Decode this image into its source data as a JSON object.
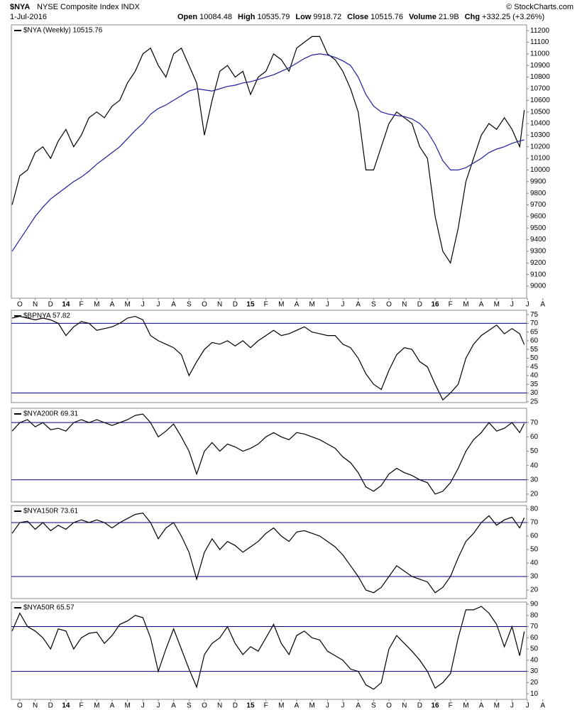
{
  "header": {
    "symbol": "$NYA",
    "name": "NYSE Composite Index INDX",
    "date": "1-Jul-2016",
    "quote": [
      {
        "label": "Open",
        "value": "10084.48"
      },
      {
        "label": "High",
        "value": "10535.79"
      },
      {
        "label": "Low",
        "value": "9918.72"
      },
      {
        "label": "Close",
        "value": "10515.76"
      },
      {
        "label": "Volume",
        "value": "21.9B"
      },
      {
        "label": "Chg",
        "value": "+332.25 (+3.26%)"
      }
    ],
    "credit": "© StockCharts.com"
  },
  "chart_data": [
    {
      "type": "line",
      "xlim": [
        -0.55,
        32.95
      ],
      "ylim": [
        8896,
        11250
      ],
      "x": [
        -0.5,
        0,
        0.5,
        1,
        1.5,
        2,
        2.5,
        3,
        3.5,
        4,
        4.5,
        5,
        5.5,
        6,
        6.5,
        7,
        7.5,
        8,
        8.5,
        9,
        9.5,
        10,
        10.5,
        11,
        11.5,
        12,
        12.5,
        13,
        13.5,
        14,
        14.5,
        15,
        15.5,
        16,
        16.5,
        17,
        17.5,
        18,
        18.5,
        19,
        19.5,
        20,
        20.5,
        21,
        21.5,
        22,
        22.5,
        23,
        23.5,
        24,
        24.5,
        25,
        25.5,
        26,
        26.5,
        27,
        27.5,
        28,
        28.5,
        29,
        29.5,
        30,
        30.5,
        31,
        31.5,
        32,
        32.5,
        32.8
      ],
      "xticks": [
        {
          "value": 0,
          "label": "O"
        },
        {
          "value": 1,
          "label": "N"
        },
        {
          "value": 2,
          "label": "D"
        },
        {
          "value": 3,
          "label": "14"
        },
        {
          "value": 4,
          "label": "F"
        },
        {
          "value": 5,
          "label": "M"
        },
        {
          "value": 6,
          "label": "A"
        },
        {
          "value": 7,
          "label": "M"
        },
        {
          "value": 8,
          "label": "J"
        },
        {
          "value": 9,
          "label": "J"
        },
        {
          "value": 10,
          "label": "A"
        },
        {
          "value": 11,
          "label": "S"
        },
        {
          "value": 12,
          "label": "O"
        },
        {
          "value": 13,
          "label": "N"
        },
        {
          "value": 14,
          "label": "D"
        },
        {
          "value": 15,
          "label": "15"
        },
        {
          "value": 16,
          "label": "F"
        },
        {
          "value": 17,
          "label": "M"
        },
        {
          "value": 18,
          "label": "A"
        },
        {
          "value": 19,
          "label": "M"
        },
        {
          "value": 20,
          "label": "J"
        },
        {
          "value": 21,
          "label": "J"
        },
        {
          "value": 22,
          "label": "A"
        },
        {
          "value": 23,
          "label": "S"
        },
        {
          "value": 24,
          "label": "O"
        },
        {
          "value": 25,
          "label": "N"
        },
        {
          "value": 26,
          "label": "D"
        },
        {
          "value": 27,
          "label": "16"
        },
        {
          "value": 28,
          "label": "F"
        },
        {
          "value": 29,
          "label": "M"
        },
        {
          "value": 30,
          "label": "A"
        },
        {
          "value": 31,
          "label": "M"
        },
        {
          "value": 32,
          "label": "J"
        },
        {
          "value": 33,
          "label": "J"
        },
        {
          "value": 34,
          "label": "A"
        }
      ],
      "yticks": [
        9000,
        9100,
        9200,
        9300,
        9400,
        9500,
        9600,
        9700,
        9800,
        9900,
        10000,
        10100,
        10200,
        10300,
        10400,
        10500,
        10600,
        10700,
        10800,
        10900,
        11000,
        11100,
        11200
      ],
      "series": [
        {
          "name": "$NYA (Weekly) 10515.76",
          "color": "#000000",
          "values": [
            9700,
            9950,
            10000,
            10150,
            10200,
            10100,
            10250,
            10350,
            10200,
            10300,
            10450,
            10500,
            10450,
            10550,
            10600,
            10750,
            10850,
            11000,
            11050,
            10900,
            10800,
            11000,
            11050,
            10900,
            10750,
            10300,
            10600,
            10850,
            10900,
            10800,
            10850,
            10650,
            10800,
            10850,
            11000,
            10950,
            10850,
            11050,
            11100,
            11150,
            11150,
            11000,
            10950,
            10850,
            10700,
            10500,
            10000,
            10000,
            10200,
            10400,
            10500,
            10450,
            10400,
            10200,
            10100,
            9600,
            9300,
            9200,
            9500,
            9900,
            10100,
            10300,
            10400,
            10350,
            10450,
            10350,
            10200,
            10516
          ]
        },
        {
          "color": "#1f1f99",
          "values": [
            9300,
            9400,
            9500,
            9600,
            9680,
            9750,
            9800,
            9850,
            9900,
            9940,
            9990,
            10050,
            10100,
            10150,
            10200,
            10270,
            10340,
            10400,
            10480,
            10530,
            10560,
            10600,
            10640,
            10680,
            10700,
            10690,
            10680,
            10700,
            10720,
            10730,
            10750,
            10760,
            10780,
            10800,
            10820,
            10850,
            10880,
            10920,
            10960,
            10990,
            11000,
            10990,
            10970,
            10940,
            10900,
            10800,
            10650,
            10550,
            10500,
            10480,
            10470,
            10460,
            10440,
            10400,
            10330,
            10220,
            10080,
            10000,
            10000,
            10020,
            10060,
            10100,
            10150,
            10180,
            10200,
            10230,
            10250,
            10260
          ]
        }
      ]
    },
    {
      "type": "line",
      "xlim": [
        -0.55,
        32.95
      ],
      "ylim": [
        24.5,
        77.5
      ],
      "x": [
        -0.5,
        0,
        0.5,
        1,
        1.5,
        2,
        2.5,
        3,
        3.5,
        4,
        4.5,
        5,
        5.5,
        6,
        6.5,
        7,
        7.5,
        8,
        8.5,
        9,
        9.5,
        10,
        10.5,
        11,
        11.5,
        12,
        12.5,
        13,
        13.5,
        14,
        14.5,
        15,
        15.5,
        16,
        16.5,
        17,
        17.5,
        18,
        18.5,
        19,
        19.5,
        20,
        20.5,
        21,
        21.5,
        22,
        22.5,
        23,
        23.5,
        24,
        24.5,
        25,
        25.5,
        26,
        26.5,
        27,
        27.5,
        28,
        28.5,
        29,
        29.5,
        30,
        30.5,
        31,
        31.5,
        32,
        32.5,
        32.8
      ],
      "yticks": [
        25,
        30,
        35,
        40,
        45,
        50,
        55,
        60,
        65,
        70,
        75
      ],
      "reference_lines": [
        70,
        30
      ],
      "series": [
        {
          "name": "$BPNYA 57.82",
          "color": "#000000",
          "values": [
            73,
            74,
            73,
            72,
            73,
            72,
            70,
            63,
            68,
            71,
            70,
            66,
            67,
            68,
            70,
            73,
            74,
            72,
            63,
            60,
            58,
            56,
            52,
            40,
            48,
            55,
            59,
            58,
            60,
            57,
            60,
            56,
            60,
            63,
            66,
            63,
            64,
            66,
            68,
            65,
            64,
            63,
            63,
            58,
            56,
            50,
            41,
            35,
            32,
            43,
            52,
            56,
            55,
            48,
            45,
            35,
            26,
            30,
            35,
            50,
            58,
            63,
            66,
            69,
            64,
            67,
            64,
            57.82
          ]
        }
      ]
    },
    {
      "type": "line",
      "xlim": [
        -0.55,
        32.95
      ],
      "ylim": [
        14.5,
        80
      ],
      "x": [
        -0.5,
        0,
        0.5,
        1,
        1.5,
        2,
        2.5,
        3,
        3.5,
        4,
        4.5,
        5,
        5.5,
        6,
        6.5,
        7,
        7.5,
        8,
        8.5,
        9,
        9.5,
        10,
        10.5,
        11,
        11.5,
        12,
        12.5,
        13,
        13.5,
        14,
        14.5,
        15,
        15.5,
        16,
        16.5,
        17,
        17.5,
        18,
        18.5,
        19,
        19.5,
        20,
        20.5,
        21,
        21.5,
        22,
        22.5,
        23,
        23.5,
        24,
        24.5,
        25,
        25.5,
        26,
        26.5,
        27,
        27.5,
        28,
        28.5,
        29,
        29.5,
        30,
        30.5,
        31,
        31.5,
        32,
        32.5,
        32.8
      ],
      "yticks": [
        20,
        30,
        40,
        50,
        60,
        70
      ],
      "reference_lines": [
        70,
        30
      ],
      "series": [
        {
          "name": "$NYA200R 69.31",
          "color": "#000000",
          "values": [
            64,
            70,
            72,
            67,
            70,
            65,
            66,
            64,
            70,
            72,
            70,
            72,
            70,
            68,
            70,
            72,
            75,
            76,
            70,
            60,
            64,
            69,
            60,
            50,
            34,
            50,
            56,
            50,
            55,
            53,
            50,
            52,
            55,
            60,
            63,
            60,
            58,
            63,
            62,
            60,
            58,
            55,
            52,
            46,
            42,
            35,
            25,
            22,
            26,
            34,
            38,
            35,
            33,
            30,
            28,
            20,
            22,
            28,
            38,
            50,
            58,
            63,
            70,
            64,
            66,
            70,
            63,
            69.31
          ]
        }
      ]
    },
    {
      "type": "line",
      "xlim": [
        -0.55,
        32.95
      ],
      "ylim": [
        13.7,
        82.6
      ],
      "x": [
        -0.5,
        0,
        0.5,
        1,
        1.5,
        2,
        2.5,
        3,
        3.5,
        4,
        4.5,
        5,
        5.5,
        6,
        6.5,
        7,
        7.5,
        8,
        8.5,
        9,
        9.5,
        10,
        10.5,
        11,
        11.5,
        12,
        12.5,
        13,
        13.5,
        14,
        14.5,
        15,
        15.5,
        16,
        16.5,
        17,
        17.5,
        18,
        18.5,
        19,
        19.5,
        20,
        20.5,
        21,
        21.5,
        22,
        22.5,
        23,
        23.5,
        24,
        24.5,
        25,
        25.5,
        26,
        26.5,
        27,
        27.5,
        28,
        28.5,
        29,
        29.5,
        30,
        30.5,
        31,
        31.5,
        32,
        32.5,
        32.8
      ],
      "yticks": [
        20,
        30,
        40,
        50,
        60,
        70,
        80
      ],
      "reference_lines": [
        70,
        30
      ],
      "series": [
        {
          "name": "$NYA150R 73.61",
          "color": "#000000",
          "values": [
            62,
            70,
            71,
            65,
            70,
            64,
            68,
            65,
            70,
            72,
            70,
            72,
            70,
            66,
            70,
            73,
            76,
            77,
            70,
            58,
            66,
            70,
            60,
            48,
            28,
            48,
            58,
            50,
            56,
            53,
            48,
            52,
            56,
            62,
            66,
            60,
            56,
            63,
            64,
            62,
            60,
            56,
            52,
            46,
            38,
            30,
            20,
            18,
            22,
            30,
            38,
            34,
            30,
            28,
            26,
            18,
            22,
            30,
            44,
            56,
            62,
            70,
            75,
            68,
            72,
            74,
            66,
            73.61
          ]
        }
      ]
    },
    {
      "type": "line",
      "xlim": [
        -0.55,
        32.95
      ],
      "ylim": [
        5,
        91.9
      ],
      "x": [
        -0.5,
        0,
        0.5,
        1,
        1.5,
        2,
        2.5,
        3,
        3.5,
        4,
        4.5,
        5,
        5.5,
        6,
        6.5,
        7,
        7.5,
        8,
        8.5,
        9,
        9.5,
        10,
        10.5,
        11,
        11.5,
        12,
        12.5,
        13,
        13.5,
        14,
        14.5,
        15,
        15.5,
        16,
        16.5,
        17,
        17.5,
        18,
        18.5,
        19,
        19.5,
        20,
        20.5,
        21,
        21.5,
        22,
        22.5,
        23,
        23.5,
        24,
        24.5,
        25,
        25.5,
        26,
        26.5,
        27,
        27.5,
        28,
        28.5,
        29,
        29.5,
        30,
        30.5,
        31,
        31.5,
        32,
        32.5,
        32.8
      ],
      "xticks": [
        {
          "value": 0,
          "label": "O"
        },
        {
          "value": 1,
          "label": "N"
        },
        {
          "value": 2,
          "label": "D"
        },
        {
          "value": 3,
          "label": "14"
        },
        {
          "value": 4,
          "label": "F"
        },
        {
          "value": 5,
          "label": "M"
        },
        {
          "value": 6,
          "label": "A"
        },
        {
          "value": 7,
          "label": "M"
        },
        {
          "value": 8,
          "label": "J"
        },
        {
          "value": 9,
          "label": "J"
        },
        {
          "value": 10,
          "label": "A"
        },
        {
          "value": 11,
          "label": "S"
        },
        {
          "value": 12,
          "label": "O"
        },
        {
          "value": 13,
          "label": "N"
        },
        {
          "value": 14,
          "label": "D"
        },
        {
          "value": 15,
          "label": "15"
        },
        {
          "value": 16,
          "label": "F"
        },
        {
          "value": 17,
          "label": "M"
        },
        {
          "value": 18,
          "label": "A"
        },
        {
          "value": 19,
          "label": "M"
        },
        {
          "value": 20,
          "label": "J"
        },
        {
          "value": 21,
          "label": "J"
        },
        {
          "value": 22,
          "label": "A"
        },
        {
          "value": 23,
          "label": "S"
        },
        {
          "value": 24,
          "label": "O"
        },
        {
          "value": 25,
          "label": "N"
        },
        {
          "value": 26,
          "label": "D"
        },
        {
          "value": 27,
          "label": "16"
        },
        {
          "value": 28,
          "label": "F"
        },
        {
          "value": 29,
          "label": "M"
        },
        {
          "value": 30,
          "label": "A"
        },
        {
          "value": 31,
          "label": "M"
        },
        {
          "value": 32,
          "label": "J"
        },
        {
          "value": 33,
          "label": "J"
        },
        {
          "value": 34,
          "label": "A"
        }
      ],
      "yticks": [
        10,
        20,
        30,
        40,
        50,
        60,
        70,
        80,
        90
      ],
      "reference_lines": [
        70,
        30
      ],
      "series": [
        {
          "name": "$NYA50R 65.57",
          "color": "#000000",
          "values": [
            66,
            82,
            70,
            66,
            60,
            50,
            68,
            66,
            50,
            60,
            64,
            65,
            55,
            62,
            72,
            75,
            80,
            78,
            60,
            30,
            50,
            68,
            50,
            32,
            16,
            45,
            55,
            60,
            70,
            55,
            45,
            52,
            48,
            60,
            72,
            55,
            45,
            62,
            66,
            60,
            58,
            48,
            44,
            40,
            32,
            30,
            18,
            14,
            20,
            50,
            62,
            55,
            48,
            40,
            30,
            15,
            20,
            28,
            60,
            85,
            85,
            88,
            82,
            72,
            52,
            70,
            44,
            65.57
          ]
        }
      ]
    }
  ]
}
